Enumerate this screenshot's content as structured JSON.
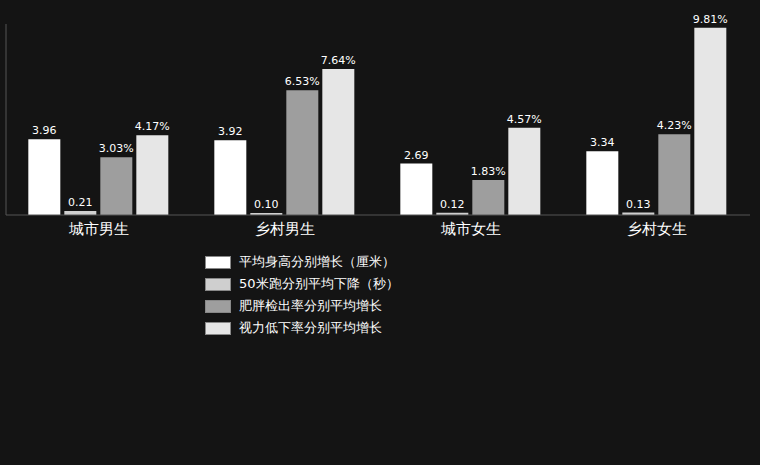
{
  "chart_data": {
    "type": "bar",
    "categories": [
      "城市男生",
      "乡村男生",
      "城市女生",
      "乡村女生"
    ],
    "series": [
      {
        "name": "平均身高分别增长（厘米）",
        "color": "#ffffff",
        "values": [
          3.96,
          3.92,
          2.69,
          3.34
        ]
      },
      {
        "name": "50米跑分别平均下降（秒）",
        "color": "#cfcfcf",
        "values": [
          0.21,
          0.1,
          0.12,
          0.13
        ],
        "value_labels": [
          "0.21",
          "0.10",
          "0.12",
          "0.13"
        ]
      },
      {
        "name": "肥胖检出率分别平均增长",
        "color": "#9e9e9e",
        "values": [
          3.03,
          6.53,
          1.83,
          4.23
        ],
        "value_labels": [
          "3.03%",
          "6.53%",
          "1.83%",
          "4.23%"
        ]
      },
      {
        "name": "视力低下率分别平均增长",
        "color": "#e6e6e6",
        "values": [
          4.17,
          7.64,
          4.57,
          9.81
        ],
        "value_labels": [
          "4.17%",
          "7.64%",
          "4.57%",
          "9.81%"
        ]
      }
    ],
    "ylim": [
      0,
      10
    ],
    "data_labels": true,
    "tick_labels": "x",
    "legend": "bottom",
    "grid": false
  }
}
